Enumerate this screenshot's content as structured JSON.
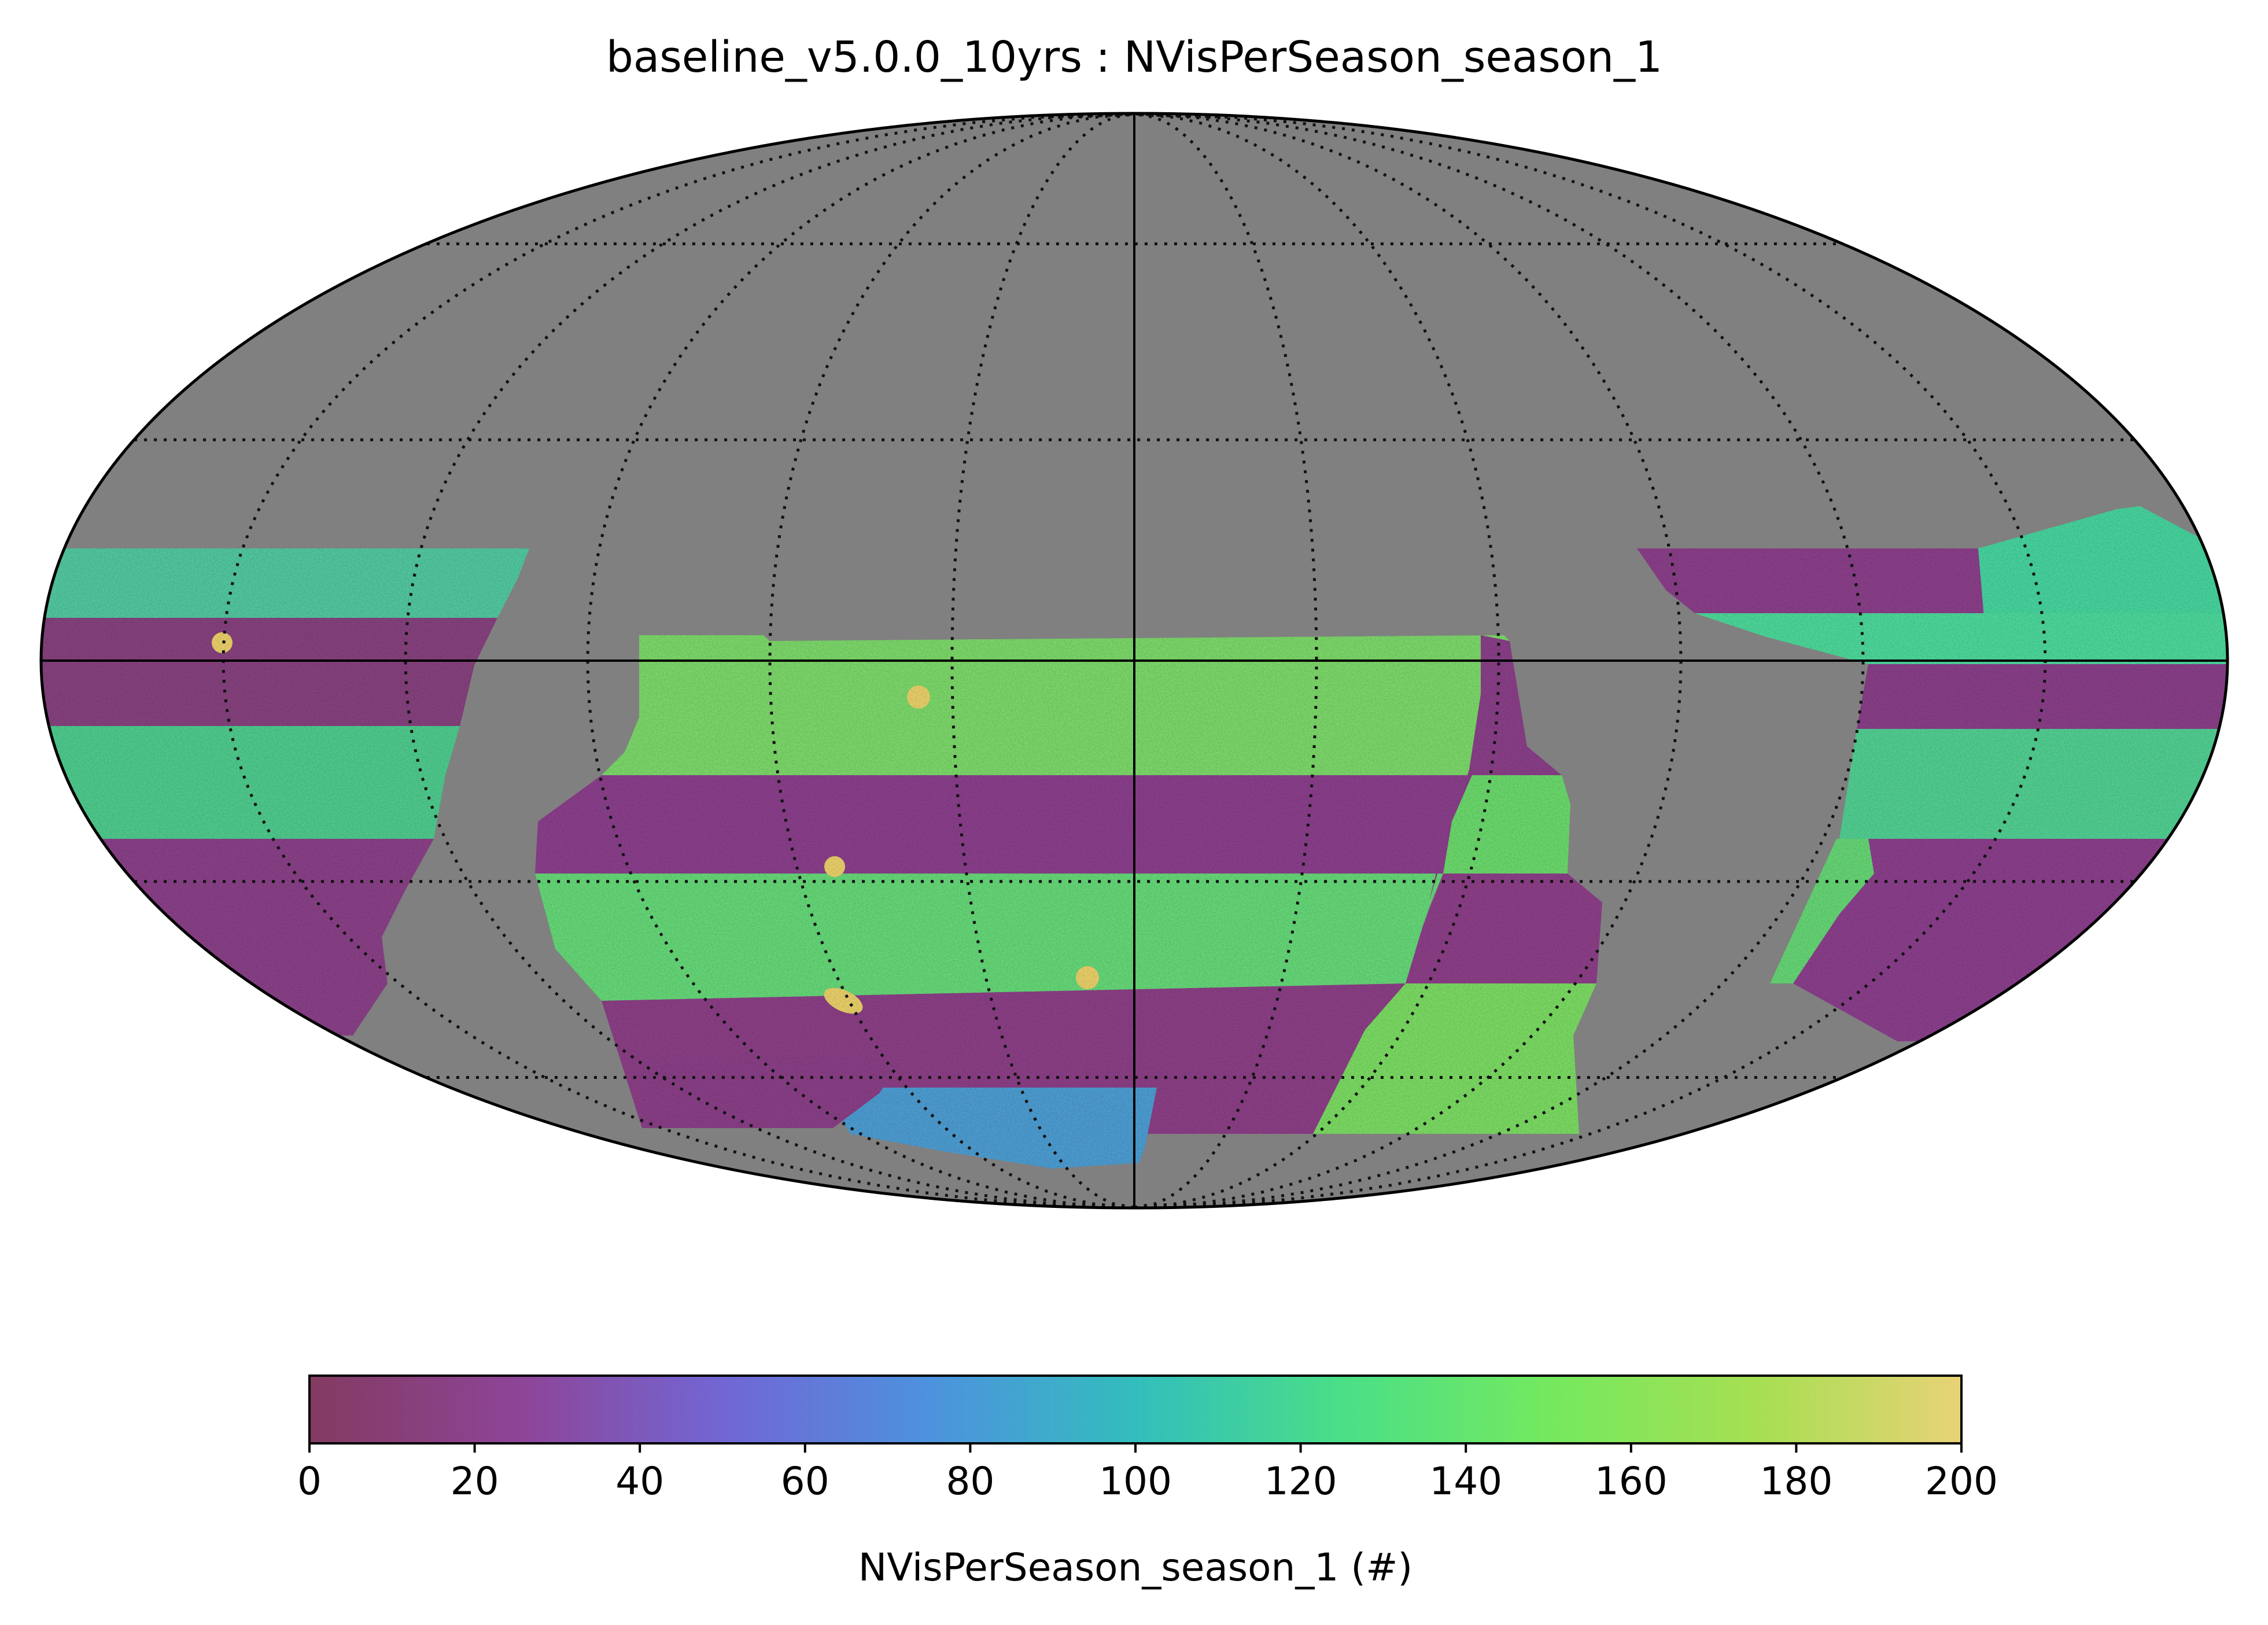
{
  "chart_data": {
    "type": "heatmap",
    "projection": "mollweide",
    "title": "baseline_v5.0.0_10yrs : NVisPerSeason_season_1",
    "background_color": "#808080",
    "graticule": "on",
    "colorbar": {
      "label": "NVisPerSeason_season_1 (#)",
      "range": [
        0,
        200
      ],
      "ticks": [
        "0",
        "20",
        "40",
        "60",
        "80",
        "100",
        "120",
        "140",
        "160",
        "180",
        "200"
      ],
      "colors": [
        "#833b61",
        "#8e4496",
        "#7266d4",
        "#4d92de",
        "#33bdbd",
        "#4adf87",
        "#74e95f",
        "#a6df52",
        "#e8d276"
      ]
    },
    "regions": [
      {
        "name": "left-footprint",
        "description": "high-coverage bands alternating with low-coverage bands"
      },
      {
        "name": "central-footprint",
        "description": "alternating bands of ~140-170 and ~20-40 visits"
      },
      {
        "name": "right-footprint",
        "description": "alternating bands of ~140-160 and ~20-40 visits"
      }
    ],
    "hotspots_value": 200
  }
}
